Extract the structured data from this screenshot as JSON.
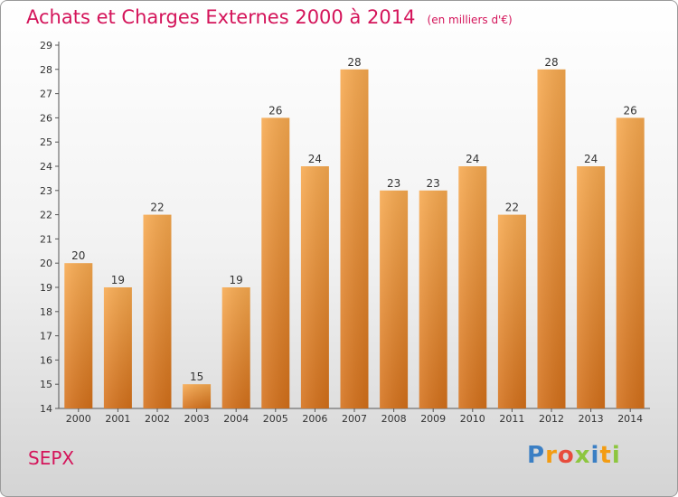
{
  "title": "Achats et Charges Externes 2000 à 2014",
  "unit": "(en milliers d'€)",
  "entity": "SEPX",
  "logo": {
    "text": "Proxiti",
    "letter_colors": [
      "#3b7fc4",
      "#f39c12",
      "#e74c3c",
      "#8dc63f",
      "#3b7fc4",
      "#f39c12",
      "#8dc63f"
    ]
  },
  "colors": {
    "title": "#d4145a",
    "bar_top": "#f7a94f",
    "bar_bottom": "#d4701a",
    "axis": "#555555"
  },
  "chart_data": {
    "type": "bar",
    "categories": [
      "2000",
      "2001",
      "2002",
      "2003",
      "2004",
      "2005",
      "2006",
      "2007",
      "2008",
      "2009",
      "2010",
      "2011",
      "2012",
      "2013",
      "2014"
    ],
    "values": [
      20,
      19,
      22,
      15,
      19,
      26,
      24,
      28,
      23,
      23,
      24,
      22,
      28,
      24,
      26
    ],
    "ylim": [
      14,
      29
    ],
    "yticks": [
      14,
      15,
      16,
      17,
      18,
      19,
      20,
      21,
      22,
      23,
      24,
      25,
      26,
      27,
      28,
      29
    ],
    "data_labels": true,
    "grid": false,
    "legend": "none"
  }
}
